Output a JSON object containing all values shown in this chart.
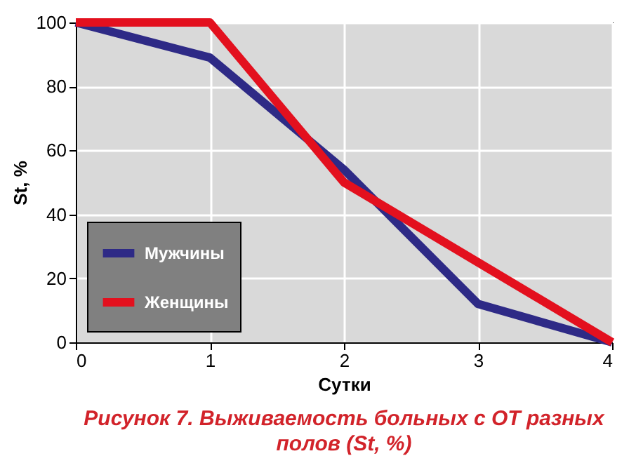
{
  "chart_data": {
    "type": "line",
    "title": "Рисунок 7. Выживаемость больных с ОТ разных полов (St, %)",
    "xlabel": "Сутки",
    "ylabel": "St, %",
    "x": [
      0,
      1,
      2,
      3,
      4
    ],
    "series": [
      {
        "name": "Мужчины",
        "color": "#2e2a86",
        "values": [
          100,
          89,
          54,
          12,
          0
        ]
      },
      {
        "name": "Женщины",
        "color": "#e3101e",
        "values": [
          100,
          100,
          50,
          25,
          0
        ]
      }
    ],
    "xlim": [
      0,
      4
    ],
    "xticks": [
      0,
      1,
      2,
      3,
      4
    ],
    "ylim": [
      0,
      100
    ],
    "yticks": [
      0,
      20,
      40,
      60,
      80,
      100
    ],
    "grid": true,
    "legend": "bottom left",
    "marker": "none",
    "line_style": "solid"
  }
}
